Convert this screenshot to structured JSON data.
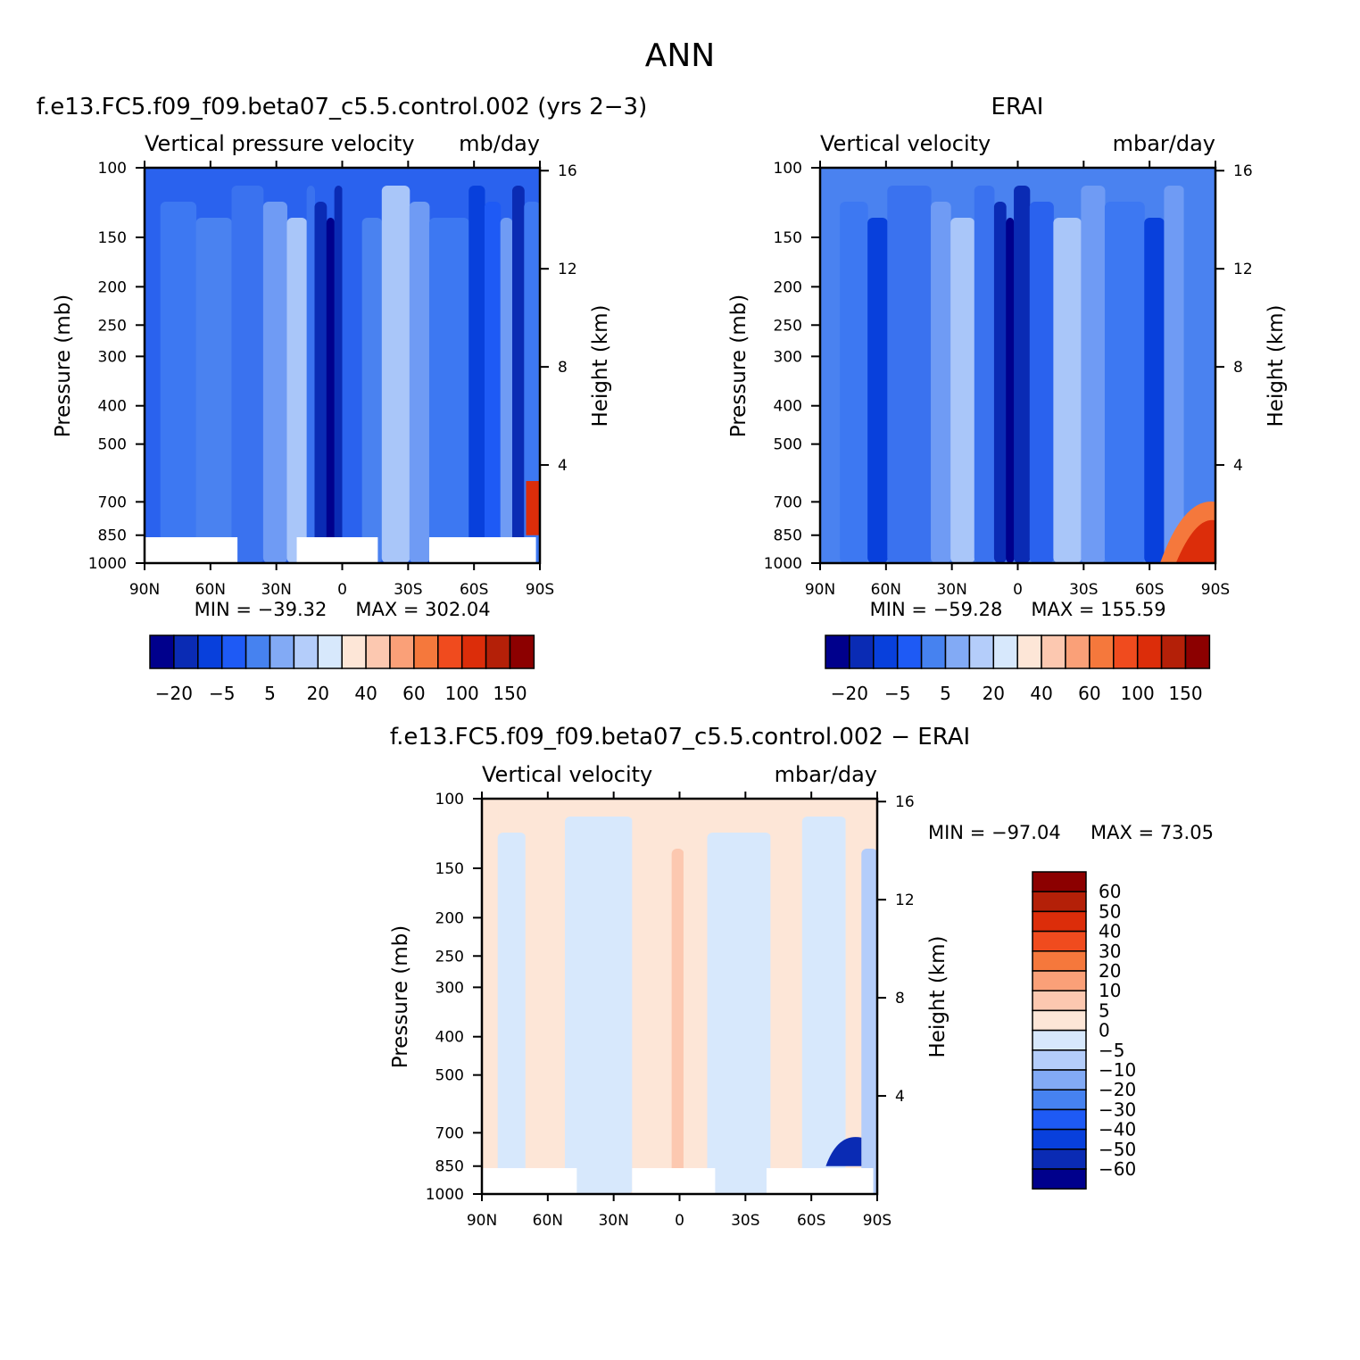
{
  "main_title": "ANN",
  "colorbar_abs": {
    "colors": [
      "#00008c",
      "#0a2bb4",
      "#0840dc",
      "#1e5af5",
      "#4682f0",
      "#82aaf5",
      "#b4cdfa",
      "#d7e8fc",
      "#fde6d7",
      "#fcc8b0",
      "#faa078",
      "#f5783c",
      "#f04b1e",
      "#dc2d0a",
      "#b42008",
      "#8c0000"
    ],
    "labels": [
      "-20",
      "-5",
      "5",
      "20",
      "40",
      "60",
      "100",
      "150"
    ]
  },
  "colorbar_diff": {
    "colors": [
      "#00008c",
      "#0a2bb4",
      "#0840dc",
      "#1e5af5",
      "#4682f0",
      "#82aaf5",
      "#b4cdfa",
      "#d7e8fc",
      "#fde6d7",
      "#fcc8b0",
      "#faa078",
      "#f5783c",
      "#f04b1e",
      "#dc2d0a",
      "#b42008",
      "#8c0000"
    ],
    "labels": [
      "60",
      "50",
      "40",
      "30",
      "20",
      "10",
      "5",
      "0",
      "-5",
      "-10",
      "-20",
      "-30",
      "-40",
      "-50",
      "-60"
    ]
  },
  "chart_data": [
    {
      "type": "heatmap",
      "id": "model",
      "title": "f.e13.FC5.f09_f09.beta07_c5.5.control.002 (yrs 2-3)",
      "left_label": "Vertical pressure velocity",
      "right_label": "mb/day",
      "xlabel": "",
      "ylabel": "Pressure (mb)",
      "y2label": "Height (km)",
      "x_ticks": [
        "90N",
        "60N",
        "30N",
        "0",
        "30S",
        "60S",
        "90S"
      ],
      "y_ticks": [
        100,
        150,
        200,
        250,
        300,
        400,
        500,
        700,
        850,
        1000
      ],
      "y2_ticks": [
        16,
        12,
        8,
        4
      ],
      "min_label": "MIN = -39.32",
      "max_label": "MAX = 302.04",
      "min": -39.32,
      "max": 302.04,
      "layout": "top-left"
    },
    {
      "type": "heatmap",
      "id": "obs",
      "title": "ERAI",
      "left_label": "Vertical velocity",
      "right_label": "mbar/day",
      "xlabel": "",
      "ylabel": "Pressure (mb)",
      "y2label": "Height (km)",
      "x_ticks": [
        "90N",
        "60N",
        "30N",
        "0",
        "30S",
        "60S",
        "90S"
      ],
      "y_ticks": [
        100,
        150,
        200,
        250,
        300,
        400,
        500,
        700,
        850,
        1000
      ],
      "y2_ticks": [
        16,
        12,
        8,
        4
      ],
      "min_label": "MIN = -59.28",
      "max_label": "MAX = 155.59",
      "min": -59.28,
      "max": 155.59,
      "layout": "top-right"
    },
    {
      "type": "heatmap",
      "id": "diff",
      "title": "f.e13.FC5.f09_f09.beta07_c5.5.control.002 - ERAI",
      "left_label": "Vertical velocity",
      "right_label": "mbar/day",
      "xlabel": "",
      "ylabel": "Pressure (mb)",
      "y2label": "Height (km)",
      "x_ticks": [
        "90N",
        "60N",
        "30N",
        "0",
        "30S",
        "60S",
        "90S"
      ],
      "y_ticks": [
        100,
        150,
        200,
        250,
        300,
        400,
        500,
        700,
        850,
        1000
      ],
      "y2_ticks": [
        16,
        12,
        8,
        4
      ],
      "min_label": "MIN = -97.04",
      "max_label": "MAX = 73.05",
      "min": -97.04,
      "max": 73.05,
      "layout": "bottom-center"
    }
  ]
}
